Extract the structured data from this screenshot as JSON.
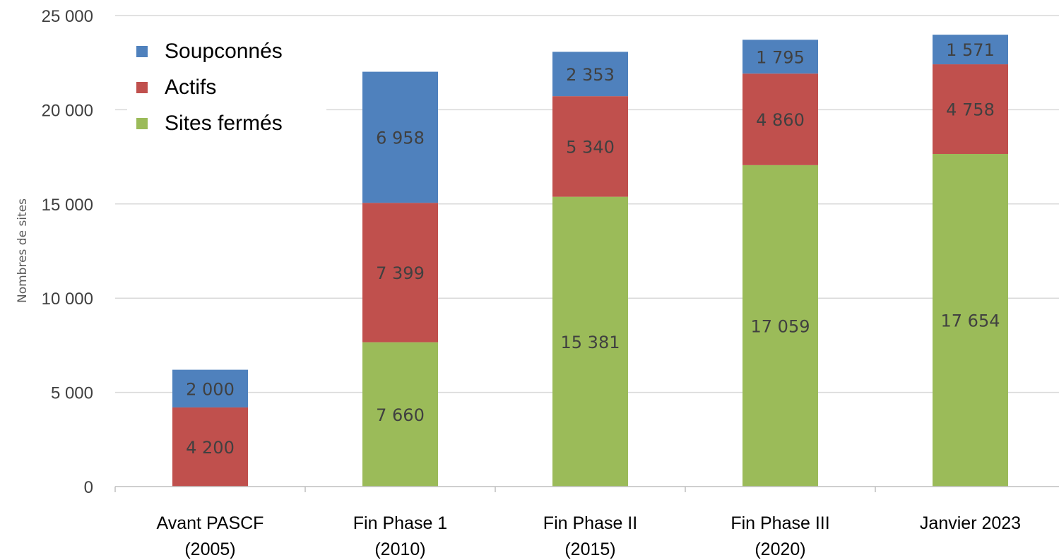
{
  "chart_data": {
    "type": "bar",
    "stacked": true,
    "categories": [
      [
        "Avant PASCF",
        "(2005)"
      ],
      [
        "Fin Phase 1",
        "(2010)"
      ],
      [
        "Fin Phase II",
        "(2015)"
      ],
      [
        "Fin Phase III",
        "(2020)"
      ],
      [
        "Janvier 2023",
        ""
      ]
    ],
    "series": [
      {
        "name": "Sites fermés",
        "color": "#9BBB59",
        "values": [
          0,
          7660,
          15381,
          17059,
          17654
        ],
        "labels": [
          "",
          "7 660",
          "15 381",
          "17 059",
          "17 654"
        ]
      },
      {
        "name": "Actifs",
        "color": "#C0504D",
        "values": [
          4200,
          7399,
          5340,
          4860,
          4758
        ],
        "labels": [
          "4 200",
          "7 399",
          "5 340",
          "4 860",
          "4 758"
        ]
      },
      {
        "name": "Soupconnés",
        "color": "#4F81BD",
        "values": [
          2000,
          6958,
          2353,
          1795,
          1571
        ],
        "labels": [
          "2 000",
          "6 958",
          "2 353",
          "1 795",
          "1 571"
        ]
      }
    ],
    "legend_order": [
      "Soupconnés",
      "Actifs",
      "Sites fermés"
    ],
    "legend_position": "top-left",
    "ylabel": "Nombres de sites",
    "xlabel": "",
    "ylim": [
      0,
      25000
    ],
    "yticks": [
      0,
      5000,
      10000,
      15000,
      20000,
      25000
    ],
    "ytick_labels": [
      "0",
      "5 000",
      "10 000",
      "15 000",
      "20 000",
      "25 000"
    ],
    "grid": true,
    "gridline_color": "#D9D9D9"
  }
}
